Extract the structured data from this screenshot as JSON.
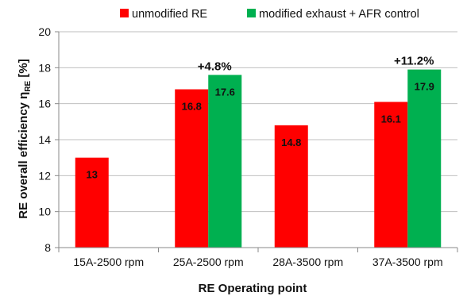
{
  "chart_data": {
    "type": "bar",
    "categories": [
      "15A-2500 rpm",
      "25A-2500 rpm",
      "28A-3500 rpm",
      "37A-3500 rpm"
    ],
    "series": [
      {
        "name": "unmodified RE",
        "color": "#ff0000",
        "values": [
          13,
          16.8,
          14.8,
          16.1
        ],
        "labels": [
          "13",
          "16.8",
          "14.8",
          "16.1"
        ]
      },
      {
        "name": "modified exhaust + AFR control",
        "color": "#00b050",
        "values": [
          null,
          17.6,
          null,
          17.9
        ],
        "labels": [
          "",
          "17.6",
          "",
          "17.9"
        ]
      }
    ],
    "annotations": [
      {
        "category_index": 1,
        "text": "+4.8%"
      },
      {
        "category_index": 3,
        "text": "+11.2%"
      }
    ],
    "xlabel": "RE Operating point",
    "ylabel": "RE overall efficiency η",
    "ylabel_subscript": "RE",
    "ylabel_unit": " [%]",
    "ylim": [
      8,
      20
    ],
    "yticks": [
      "8",
      "10",
      "12",
      "14",
      "16",
      "18",
      "20"
    ],
    "grid": true,
    "legend_position": "top"
  }
}
